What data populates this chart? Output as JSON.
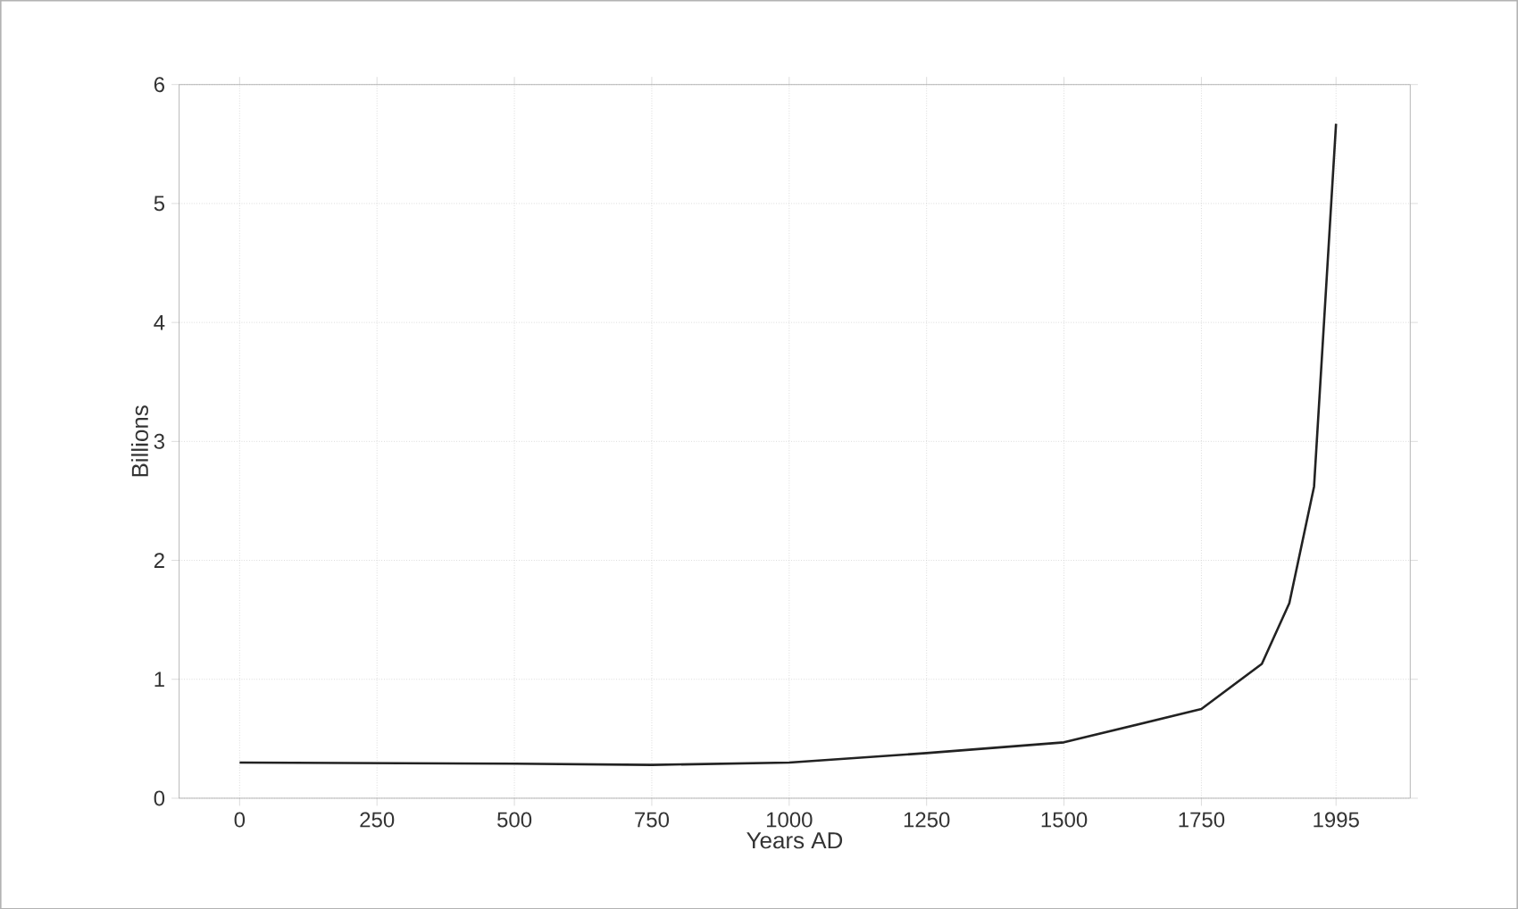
{
  "chart_data": {
    "type": "line",
    "xlabel": "Years AD",
    "ylabel": "Billions",
    "x": [
      0,
      500,
      750,
      1000,
      1250,
      1500,
      1750,
      1860,
      1910,
      1955,
      1995
    ],
    "series": [
      {
        "color": "#222222",
        "values": [
          0.3,
          0.29,
          0.28,
          0.3,
          0.38,
          0.47,
          0.75,
          1.13,
          1.64,
          2.62,
          5.67
        ]
      }
    ],
    "xlim": [
      -110,
      2130
    ],
    "xticks": [
      0,
      250,
      500,
      750,
      1000,
      1250,
      1500,
      1750,
      1995
    ],
    "ylim": [
      0,
      6
    ],
    "yticks": [
      0,
      1,
      2,
      3,
      4,
      5,
      6
    ],
    "grid": true,
    "marker": "none",
    "line_style": "solid"
  }
}
